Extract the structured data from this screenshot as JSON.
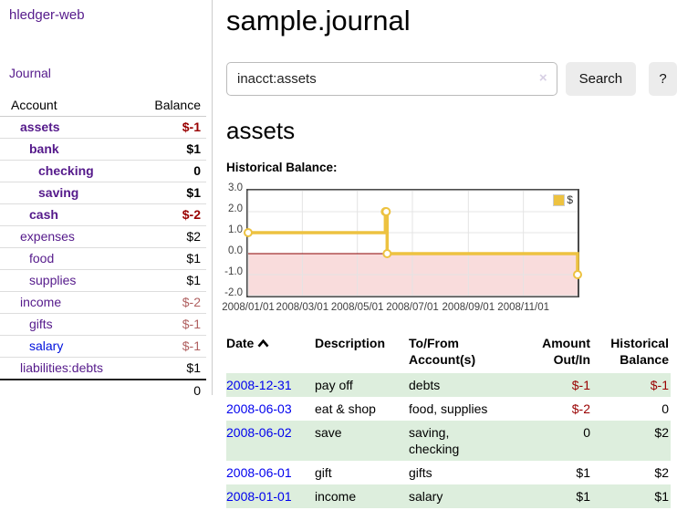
{
  "app": {
    "brand": "hledger-web",
    "nav": {
      "journal": "Journal"
    }
  },
  "sidebar": {
    "header": {
      "account": "Account",
      "balance": "Balance"
    },
    "accounts": [
      {
        "name": "assets",
        "balance": "$-1"
      },
      {
        "name": "bank",
        "balance": "$1"
      },
      {
        "name": "checking",
        "balance": "0"
      },
      {
        "name": "saving",
        "balance": "$1"
      },
      {
        "name": "cash",
        "balance": "$-2"
      },
      {
        "name": "expenses",
        "balance": "$2"
      },
      {
        "name": "food",
        "balance": "$1"
      },
      {
        "name": "supplies",
        "balance": "$1"
      },
      {
        "name": "income",
        "balance": "$-2"
      },
      {
        "name": "gifts",
        "balance": "$-1"
      },
      {
        "name": "salary",
        "balance": "$-1"
      },
      {
        "name": "liabilities:debts",
        "balance": "$1"
      }
    ],
    "total": "0"
  },
  "main": {
    "title": "sample.journal",
    "search": {
      "value": "inacct:assets",
      "clear_icon": "×",
      "button_label": "Search",
      "help_label": "?"
    },
    "account_heading": "assets"
  },
  "chart_data": {
    "type": "line",
    "title": "Historical Balance:",
    "style": "steps",
    "series": [
      {
        "name": "$",
        "color": "#edc240",
        "points": [
          [
            "2008-01-01",
            1
          ],
          [
            "2008-06-01",
            2
          ],
          [
            "2008-06-02",
            2
          ],
          [
            "2008-06-03",
            0
          ],
          [
            "2008-12-31",
            -1
          ]
        ]
      }
    ],
    "x_range": [
      "2008-01-01",
      "2008-12-31"
    ],
    "xticks": [
      "2008-01-01",
      "2008-03-01",
      "2008-05-01",
      "2008-07-01",
      "2008-09-01",
      "2008-11-01"
    ],
    "xtick_labels": [
      "2008/01/01",
      "2008/03/01",
      "2008/05/01",
      "2008/07/01",
      "2008/09/01",
      "2008/11/01"
    ],
    "yticks": [
      3.0,
      2.0,
      1.0,
      0.0,
      -1.0,
      -2.0
    ],
    "ytick_labels": [
      "3.0",
      "2.0",
      "1.0",
      "0.0",
      "-1.0",
      "-2.0"
    ],
    "ylim": [
      -2.0,
      3.0
    ],
    "grid": true,
    "legend_position": "top-right",
    "colors": {
      "below_zero_fill": "#f9dcdc",
      "zero_line": "#8b0000",
      "grid": "#e4e4e4",
      "border": "#4a4a4a"
    }
  },
  "register": {
    "columns": {
      "date": "Date",
      "description": "Description",
      "accounts": "To/From Account(s)",
      "amount": "Amount Out/In",
      "balance": "Historical Balance"
    },
    "sort_icon": "chevron-up",
    "rows": [
      {
        "date": "2008-12-31",
        "description": "pay off",
        "accounts": "debts",
        "amount": "$-1",
        "balance": "$-1"
      },
      {
        "date": "2008-06-03",
        "description": "eat & shop",
        "accounts": "food, supplies",
        "amount": "$-2",
        "balance": "0"
      },
      {
        "date": "2008-06-02",
        "description": "save",
        "accounts": "saving,\nchecking",
        "amount": "0",
        "balance": "$2"
      },
      {
        "date": "2008-06-01",
        "description": "gift",
        "accounts": "gifts",
        "amount": "$1",
        "balance": "$2"
      },
      {
        "date": "2008-01-01",
        "description": "income",
        "accounts": "salary",
        "amount": "$1",
        "balance": "$1"
      }
    ]
  }
}
